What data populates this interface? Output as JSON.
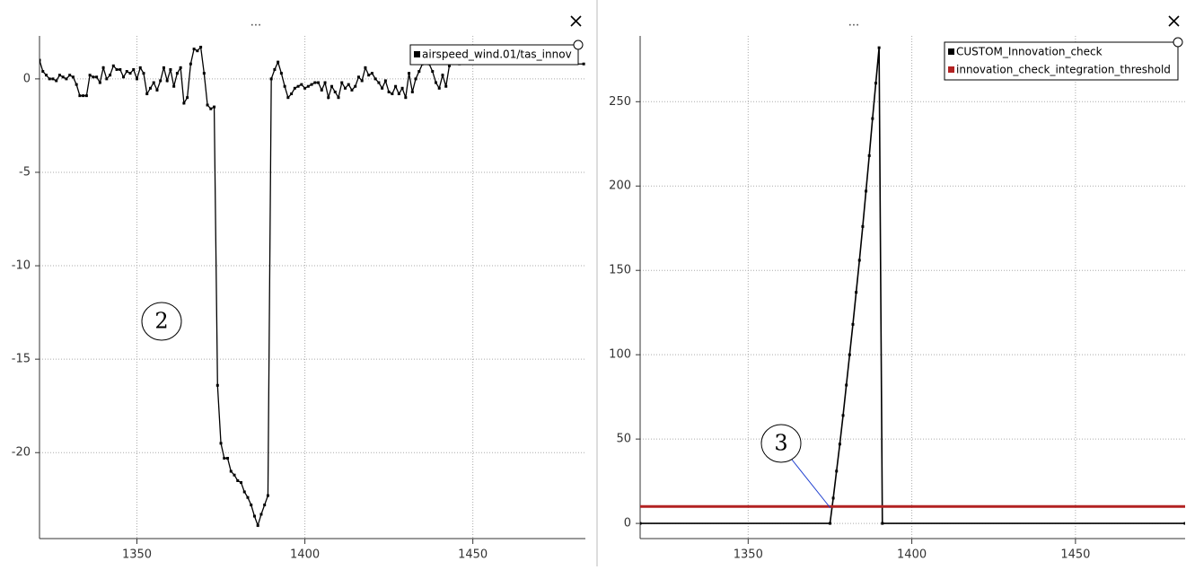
{
  "chart_data": [
    {
      "type": "line",
      "title": "...",
      "x": [
        1321,
        1322,
        1323,
        1324,
        1325,
        1326,
        1327,
        1328,
        1329,
        1330,
        1331,
        1332,
        1333,
        1334,
        1335,
        1336,
        1337,
        1338,
        1339,
        1340,
        1341,
        1342,
        1343,
        1344,
        1345,
        1346,
        1347,
        1348,
        1349,
        1350,
        1351,
        1352,
        1353,
        1354,
        1355,
        1356,
        1357,
        1358,
        1359,
        1360,
        1361,
        1362,
        1363,
        1364,
        1365,
        1366,
        1367,
        1368,
        1369,
        1370,
        1371,
        1372,
        1373,
        1374,
        1375,
        1376,
        1377,
        1378,
        1379,
        1380,
        1381,
        1382,
        1383,
        1384,
        1385,
        1386,
        1387,
        1388,
        1389,
        1390,
        1391,
        1392,
        1393,
        1394,
        1395,
        1396,
        1397,
        1398,
        1399,
        1400,
        1401,
        1402,
        1403,
        1404,
        1405,
        1406,
        1407,
        1408,
        1409,
        1410,
        1411,
        1412,
        1413,
        1414,
        1415,
        1416,
        1417,
        1418,
        1419,
        1420,
        1421,
        1422,
        1423,
        1424,
        1425,
        1426,
        1427,
        1428,
        1429,
        1430,
        1431,
        1432,
        1433,
        1434,
        1435,
        1436,
        1437,
        1438,
        1439,
        1440,
        1441,
        1442,
        1443,
        1444,
        1445,
        1446,
        1483
      ],
      "series": [
        {
          "name": "airspeed_wind.01/tas_innov",
          "color": "#000000",
          "values": [
            1.0,
            0.4,
            0.2,
            0.0,
            0.0,
            -0.1,
            0.2,
            0.1,
            0.0,
            0.2,
            0.1,
            -0.3,
            -0.9,
            -0.9,
            -0.9,
            0.2,
            0.1,
            0.1,
            -0.2,
            0.6,
            0.0,
            0.2,
            0.7,
            0.5,
            0.5,
            0.1,
            0.4,
            0.3,
            0.5,
            0.0,
            0.6,
            0.3,
            -0.8,
            -0.5,
            -0.2,
            -0.6,
            -0.1,
            0.6,
            -0.1,
            0.5,
            -0.4,
            0.3,
            0.6,
            -1.3,
            -1.0,
            0.8,
            1.6,
            1.5,
            1.7,
            0.3,
            -1.4,
            -1.6,
            -1.5,
            -16.4,
            -19.5,
            -20.3,
            -20.3,
            -21.0,
            -21.2,
            -21.5,
            -21.6,
            -22.1,
            -22.4,
            -22.8,
            -23.4,
            -23.9,
            -23.3,
            -22.8,
            -22.3,
            0.0,
            0.5,
            0.9,
            0.3,
            -0.4,
            -1.0,
            -0.8,
            -0.5,
            -0.4,
            -0.3,
            -0.5,
            -0.4,
            -0.3,
            -0.2,
            -0.2,
            -0.6,
            -0.2,
            -1.0,
            -0.4,
            -0.7,
            -1.0,
            -0.2,
            -0.5,
            -0.3,
            -0.6,
            -0.4,
            0.1,
            -0.1,
            0.6,
            0.2,
            0.3,
            0.0,
            -0.2,
            -0.5,
            -0.1,
            -0.7,
            -0.8,
            -0.4,
            -0.8,
            -0.5,
            -1.0,
            0.3,
            -0.7,
            0.0,
            0.4,
            0.8,
            0.9,
            0.8,
            0.4,
            -0.2,
            -0.5,
            0.2,
            -0.4,
            0.7,
            0.9,
            0.9,
            0.8,
            0.8
          ]
        }
      ],
      "xlim": [
        1321,
        1483.5
      ],
      "xticks": [
        1350,
        1400,
        1450
      ],
      "ylim": [
        -24.6,
        2.3
      ],
      "yticks": [
        0,
        -5,
        -10,
        -15,
        -20
      ],
      "grid": true,
      "legend": "upper right",
      "annotations": [
        {
          "text": "2"
        }
      ]
    },
    {
      "type": "line",
      "title": "...",
      "series": [
        {
          "name": "CUSTOM_Innovation_check",
          "color": "#000000",
          "x": [
            1317,
            1375,
            1376,
            1377,
            1378,
            1379,
            1380,
            1381,
            1382,
            1383,
            1384,
            1385,
            1386,
            1387,
            1388,
            1389,
            1390,
            1391,
            1483.5
          ],
          "values": [
            0,
            0,
            15,
            31,
            47,
            64,
            82,
            100,
            118,
            137,
            156,
            176,
            197,
            218,
            240,
            261,
            282,
            0,
            0
          ]
        },
        {
          "name": "innovation_check_integration_threshold",
          "color": "#b22222",
          "x": [
            1317,
            1483.5
          ],
          "values": [
            10,
            10
          ]
        }
      ],
      "xlim": [
        1317,
        1483.5
      ],
      "xticks": [
        1350,
        1400,
        1450
      ],
      "ylim": [
        -9,
        289
      ],
      "yticks": [
        0,
        50,
        100,
        150,
        200,
        250
      ],
      "grid": true,
      "legend": "upper right",
      "annotations": [
        {
          "text": "3"
        }
      ]
    }
  ]
}
